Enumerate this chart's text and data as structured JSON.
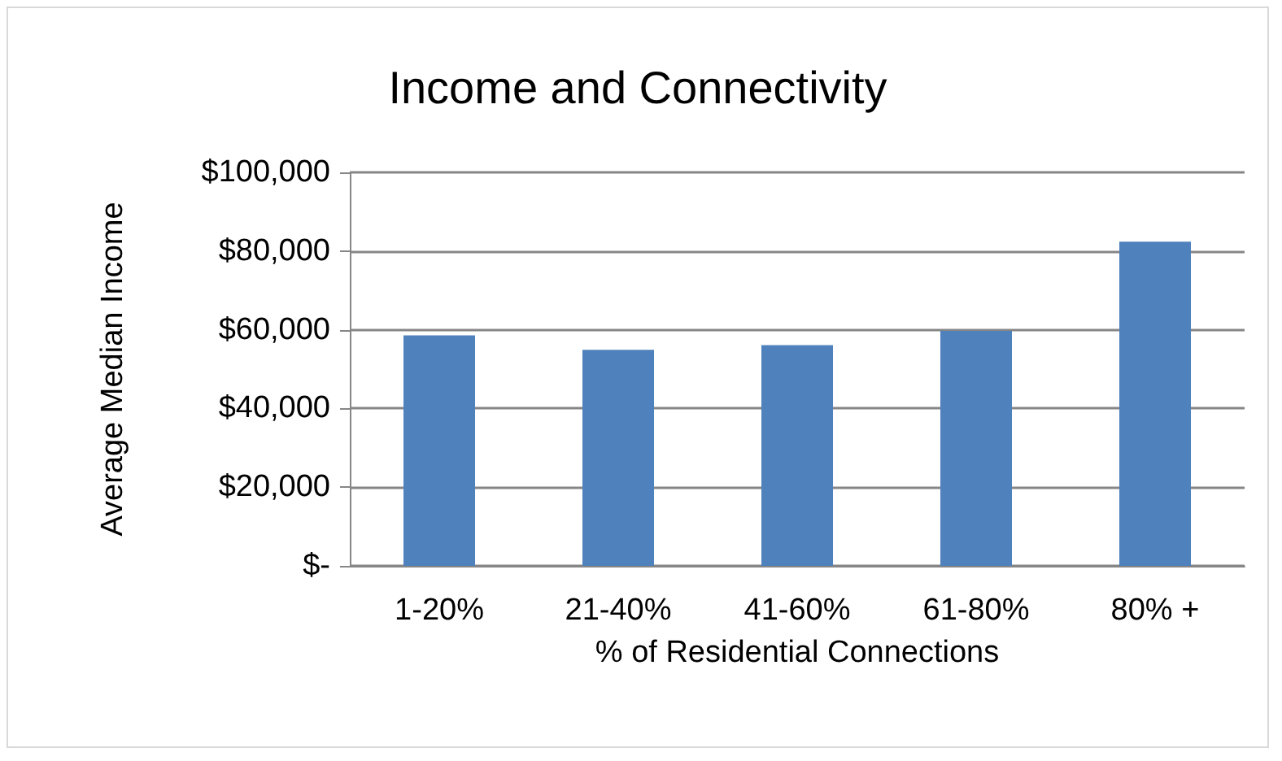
{
  "chart_data": {
    "type": "bar",
    "title": "Income and Connectivity",
    "xlabel": "% of Residential Connections",
    "ylabel": "Average Median Income",
    "categories": [
      "1-20%",
      "21-40%",
      "41-60%",
      "61-80%",
      "80% +"
    ],
    "values": [
      58600,
      54900,
      56100,
      59700,
      82400
    ],
    "color": "#4f81bd",
    "ylim": [
      0,
      100000
    ],
    "yticks": [
      {
        "value": 0,
        "label": "$-"
      },
      {
        "value": 20000,
        "label": "$20,000"
      },
      {
        "value": 40000,
        "label": "$40,000"
      },
      {
        "value": 60000,
        "label": "$60,000"
      },
      {
        "value": 80000,
        "label": "$80,000"
      },
      {
        "value": 100000,
        "label": "$100,000"
      }
    ],
    "grid": "y"
  }
}
